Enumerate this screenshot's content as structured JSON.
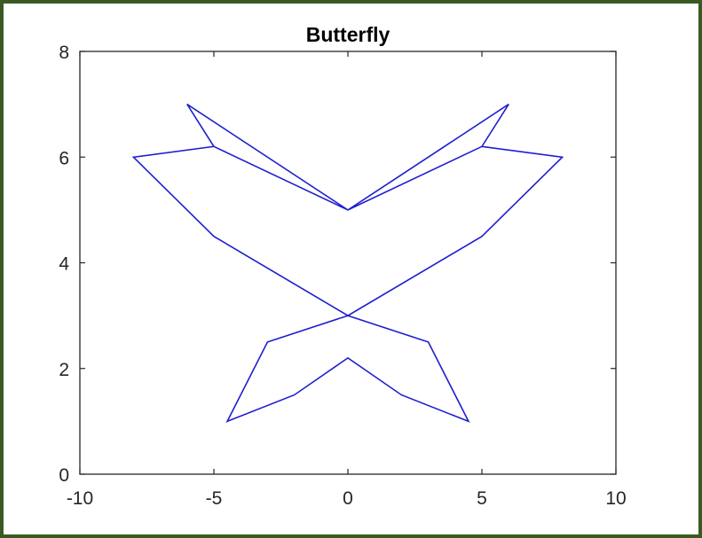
{
  "colors": {
    "frame": "#3b5a23",
    "line": "#1f1fcf",
    "axes": "#262626"
  },
  "chart_data": {
    "type": "line",
    "title": "Butterfly",
    "xlabel": "",
    "ylabel": "",
    "xlim": [
      -10,
      10
    ],
    "ylim": [
      0,
      8
    ],
    "xticks": [
      -10,
      -5,
      0,
      5,
      10
    ],
    "xtick_labels": [
      "-10",
      "-5",
      "0",
      "5",
      "10"
    ],
    "yticks": [
      0,
      2,
      4,
      6,
      8
    ],
    "ytick_labels": [
      "0",
      "2",
      "4",
      "6",
      "8"
    ],
    "grid": false,
    "series": [
      {
        "x": [
          -6,
          -5,
          0,
          5,
          6,
          0,
          -6,
          -5,
          -8,
          -5,
          0,
          3,
          4.5,
          2,
          0,
          -2,
          -4.5,
          -3,
          0,
          5,
          8,
          5
        ],
        "y": [
          7,
          6.2,
          5,
          6.2,
          7,
          5,
          7,
          6.2,
          6,
          4.5,
          3,
          2.5,
          1,
          1.5,
          2.2,
          1.5,
          1,
          2.5,
          3,
          4.5,
          6,
          6.2
        ]
      }
    ]
  }
}
